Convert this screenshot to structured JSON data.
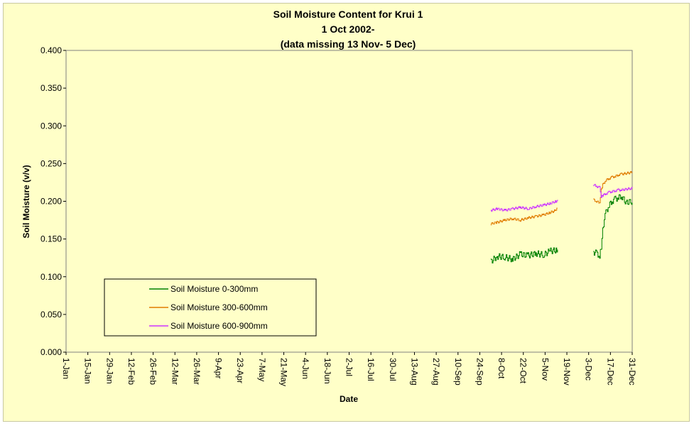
{
  "chart_data": {
    "type": "line",
    "title_lines": [
      "Soil Moisture Content for Krui 1",
      "1 Oct 2002-",
      "(data missing 13 Nov- 5 Dec)"
    ],
    "xlabel": "Date",
    "ylabel": "Soil Moisture (v/v)",
    "ylim": [
      0,
      0.4
    ],
    "yticks": [
      "0.000",
      "0.050",
      "0.100",
      "0.150",
      "0.200",
      "0.250",
      "0.300",
      "0.350",
      "0.400"
    ],
    "xticks": [
      "1-Jan",
      "15-Jan",
      "29-Jan",
      "12-Feb",
      "26-Feb",
      "12-Mar",
      "26-Mar",
      "9-Apr",
      "23-Apr",
      "7-May",
      "21-May",
      "4-Jun",
      "18-Jun",
      "2-Jul",
      "16-Jul",
      "30-Jul",
      "13-Aug",
      "27-Aug",
      "10-Sep",
      "24-Sep",
      "8-Oct",
      "22-Oct",
      "5-Nov",
      "19-Nov",
      "3-Dec",
      "17-Dec",
      "31-Dec"
    ],
    "grid": false,
    "legend_position": "bottom-left",
    "series": [
      {
        "name": "Soil Moisture 0-300mm",
        "color": "#008000",
        "segments": [
          {
            "dates": [
              "1-Oct",
              "5-Oct",
              "10-Oct",
              "15-Oct",
              "20-Oct",
              "25-Oct",
              "30-Oct",
              "4-Nov",
              "8-Nov",
              "12-Nov",
              "13-Nov"
            ],
            "values": [
              0.12,
              0.127,
              0.126,
              0.123,
              0.13,
              0.128,
              0.131,
              0.129,
              0.134,
              0.135,
              0.136
            ]
          },
          {
            "dates": [
              "6-Dec",
              "8-Dec",
              "10-Dec",
              "11-Dec",
              "12-Dec",
              "14-Dec",
              "16-Dec",
              "18-Dec",
              "20-Dec",
              "22-Dec",
              "24-Dec",
              "27-Dec",
              "30-Dec",
              "31-Dec"
            ],
            "values": [
              0.133,
              0.131,
              0.128,
              0.14,
              0.165,
              0.185,
              0.195,
              0.2,
              0.203,
              0.205,
              0.207,
              0.198,
              0.2,
              0.198
            ]
          }
        ]
      },
      {
        "name": "Soil Moisture 300-600mm",
        "color": "#e07b00",
        "segments": [
          {
            "dates": [
              "1-Oct",
              "5-Oct",
              "10-Oct",
              "15-Oct",
              "20-Oct",
              "25-Oct",
              "30-Oct",
              "4-Nov",
              "8-Nov",
              "12-Nov",
              "13-Nov"
            ],
            "values": [
              0.17,
              0.172,
              0.175,
              0.177,
              0.175,
              0.178,
              0.18,
              0.182,
              0.185,
              0.188,
              0.191
            ]
          },
          {
            "dates": [
              "6-Dec",
              "8-Dec",
              "10-Dec",
              "11-Dec",
              "12-Dec",
              "14-Dec",
              "16-Dec",
              "18-Dec",
              "20-Dec",
              "22-Dec",
              "24-Dec",
              "27-Dec",
              "30-Dec",
              "31-Dec"
            ],
            "values": [
              0.202,
              0.2,
              0.198,
              0.215,
              0.222,
              0.228,
              0.23,
              0.232,
              0.233,
              0.235,
              0.236,
              0.237,
              0.238,
              0.238
            ]
          }
        ]
      },
      {
        "name": "Soil Moisture 600-900mm",
        "color": "#cc33ff",
        "segments": [
          {
            "dates": [
              "1-Oct",
              "5-Oct",
              "10-Oct",
              "15-Oct",
              "20-Oct",
              "25-Oct",
              "30-Oct",
              "4-Nov",
              "8-Nov",
              "12-Nov",
              "13-Nov"
            ],
            "values": [
              0.188,
              0.19,
              0.188,
              0.19,
              0.192,
              0.19,
              0.193,
              0.195,
              0.197,
              0.2,
              0.202
            ]
          },
          {
            "dates": [
              "6-Dec",
              "8-Dec",
              "10-Dec",
              "11-Dec",
              "12-Dec",
              "14-Dec",
              "16-Dec",
              "18-Dec",
              "20-Dec",
              "22-Dec",
              "24-Dec",
              "27-Dec",
              "30-Dec",
              "31-Dec"
            ],
            "values": [
              0.222,
              0.22,
              0.218,
              0.205,
              0.208,
              0.21,
              0.212,
              0.213,
              0.214,
              0.215,
              0.215,
              0.216,
              0.217,
              0.217
            ]
          }
        ]
      }
    ]
  }
}
